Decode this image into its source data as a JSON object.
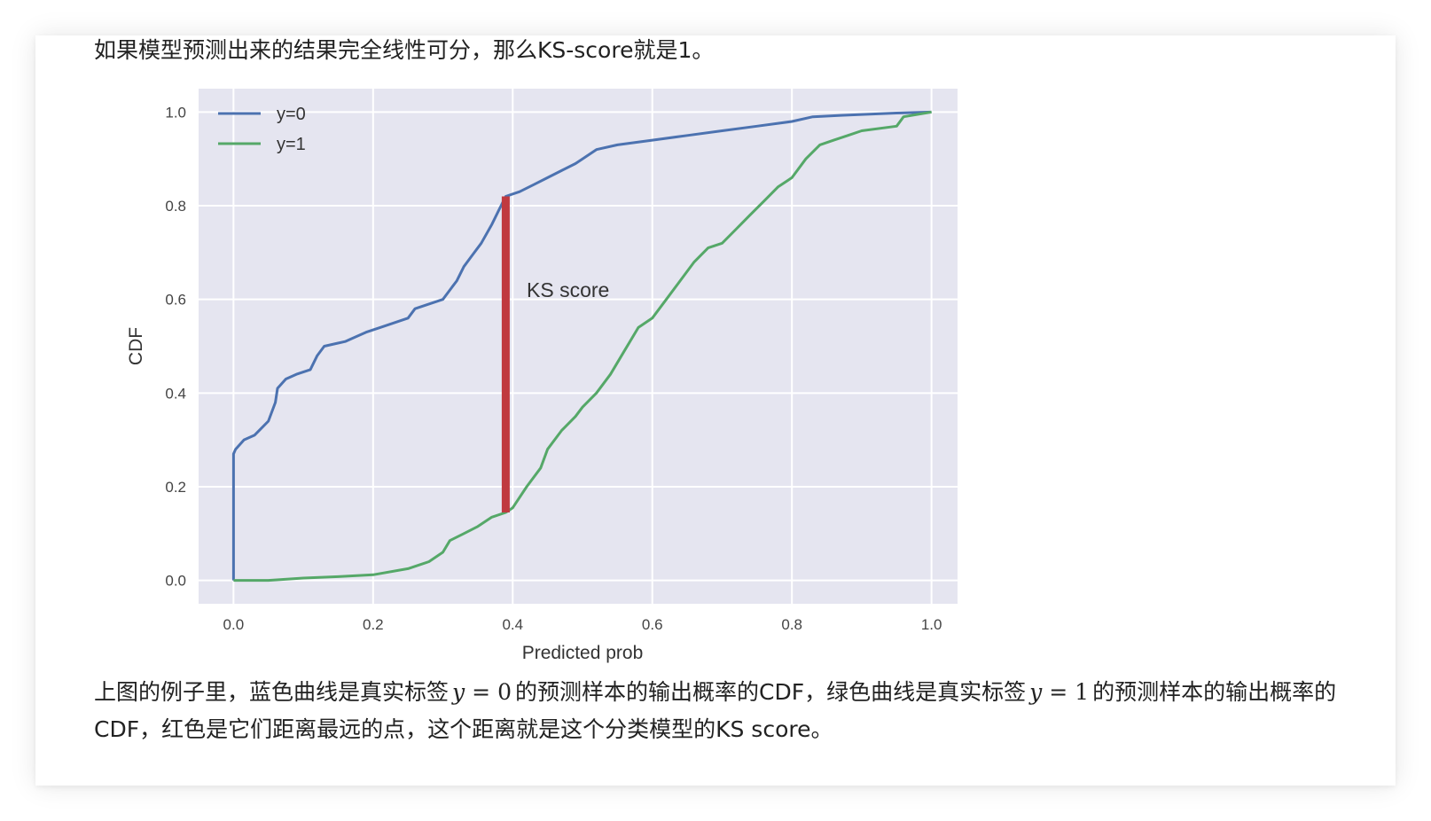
{
  "intro_text": "如果模型预测出来的结果完全线性可分，那么KS-score就是1。",
  "caption": {
    "part1": "上图的例子里，蓝色曲线是真实标签",
    "var": "y",
    "eq": "=",
    "zero": "0",
    "part2": "的预测样本的输出概率的CDF，绿色曲线是真实标签",
    "one": "1",
    "part3": "的预测样本的输出概率的CDF，红色是它们距离最远的点，这个距离就是这个分类模型的KS score。"
  },
  "colors": {
    "plot_bg": "#E5E5F0",
    "grid": "#FFFFFF",
    "blue": "#4C72B0",
    "green": "#55A868",
    "red": "#C0393F"
  },
  "chart_data": {
    "type": "line",
    "xlabel": "Predicted prob",
    "ylabel": "CDF",
    "xlim": [
      -0.05,
      1.05
    ],
    "ylim": [
      -0.05,
      1.05
    ],
    "xticks": [
      0.0,
      0.2,
      0.4,
      0.6,
      0.8,
      1.0
    ],
    "yticks": [
      0.0,
      0.2,
      0.4,
      0.6,
      0.8,
      1.0
    ],
    "xtick_labels": [
      "0.0",
      "0.2",
      "0.4",
      "0.6",
      "0.8",
      "1.0"
    ],
    "ytick_labels": [
      "0.0",
      "0.2",
      "0.4",
      "0.6",
      "0.8",
      "1.0"
    ],
    "grid": true,
    "legend_position": "top-left",
    "series": [
      {
        "name": "y=0",
        "color": "#4C72B0",
        "x": [
          0.0,
          0.0,
          0.003,
          0.015,
          0.03,
          0.04,
          0.05,
          0.06,
          0.063,
          0.075,
          0.09,
          0.11,
          0.12,
          0.13,
          0.16,
          0.19,
          0.21,
          0.25,
          0.26,
          0.3,
          0.31,
          0.32,
          0.33,
          0.34,
          0.355,
          0.37,
          0.38,
          0.39,
          0.41,
          0.43,
          0.45,
          0.47,
          0.49,
          0.5,
          0.52,
          0.55,
          0.6,
          0.65,
          0.7,
          0.75,
          0.8,
          0.83,
          0.87,
          0.9,
          0.95,
          1.0
        ],
        "y": [
          0.0,
          0.27,
          0.28,
          0.3,
          0.31,
          0.325,
          0.34,
          0.38,
          0.41,
          0.43,
          0.44,
          0.45,
          0.48,
          0.5,
          0.51,
          0.53,
          0.54,
          0.56,
          0.58,
          0.6,
          0.62,
          0.64,
          0.67,
          0.69,
          0.72,
          0.76,
          0.79,
          0.82,
          0.83,
          0.845,
          0.86,
          0.875,
          0.89,
          0.9,
          0.92,
          0.93,
          0.94,
          0.95,
          0.96,
          0.97,
          0.98,
          0.99,
          0.993,
          0.995,
          0.998,
          1.0
        ]
      },
      {
        "name": "y=1",
        "color": "#55A868",
        "x": [
          0.0,
          0.05,
          0.1,
          0.15,
          0.2,
          0.25,
          0.28,
          0.3,
          0.31,
          0.33,
          0.35,
          0.37,
          0.39,
          0.4,
          0.42,
          0.44,
          0.45,
          0.47,
          0.49,
          0.5,
          0.52,
          0.54,
          0.56,
          0.58,
          0.6,
          0.62,
          0.64,
          0.66,
          0.68,
          0.7,
          0.72,
          0.74,
          0.76,
          0.78,
          0.8,
          0.82,
          0.84,
          0.86,
          0.88,
          0.9,
          0.95,
          0.96,
          1.0
        ],
        "y": [
          0.0,
          0.0,
          0.005,
          0.008,
          0.012,
          0.025,
          0.04,
          0.06,
          0.085,
          0.1,
          0.115,
          0.135,
          0.145,
          0.155,
          0.2,
          0.24,
          0.28,
          0.32,
          0.35,
          0.37,
          0.4,
          0.44,
          0.49,
          0.54,
          0.56,
          0.6,
          0.64,
          0.68,
          0.71,
          0.72,
          0.75,
          0.78,
          0.81,
          0.84,
          0.86,
          0.9,
          0.93,
          0.94,
          0.95,
          0.96,
          0.97,
          0.99,
          1.0
        ]
      }
    ],
    "ks_line": {
      "x": 0.39,
      "y_low": 0.145,
      "y_high": 0.82,
      "color": "#C0393F"
    },
    "annotations": [
      {
        "text": "KS score",
        "x": 0.42,
        "y": 0.62
      }
    ]
  }
}
